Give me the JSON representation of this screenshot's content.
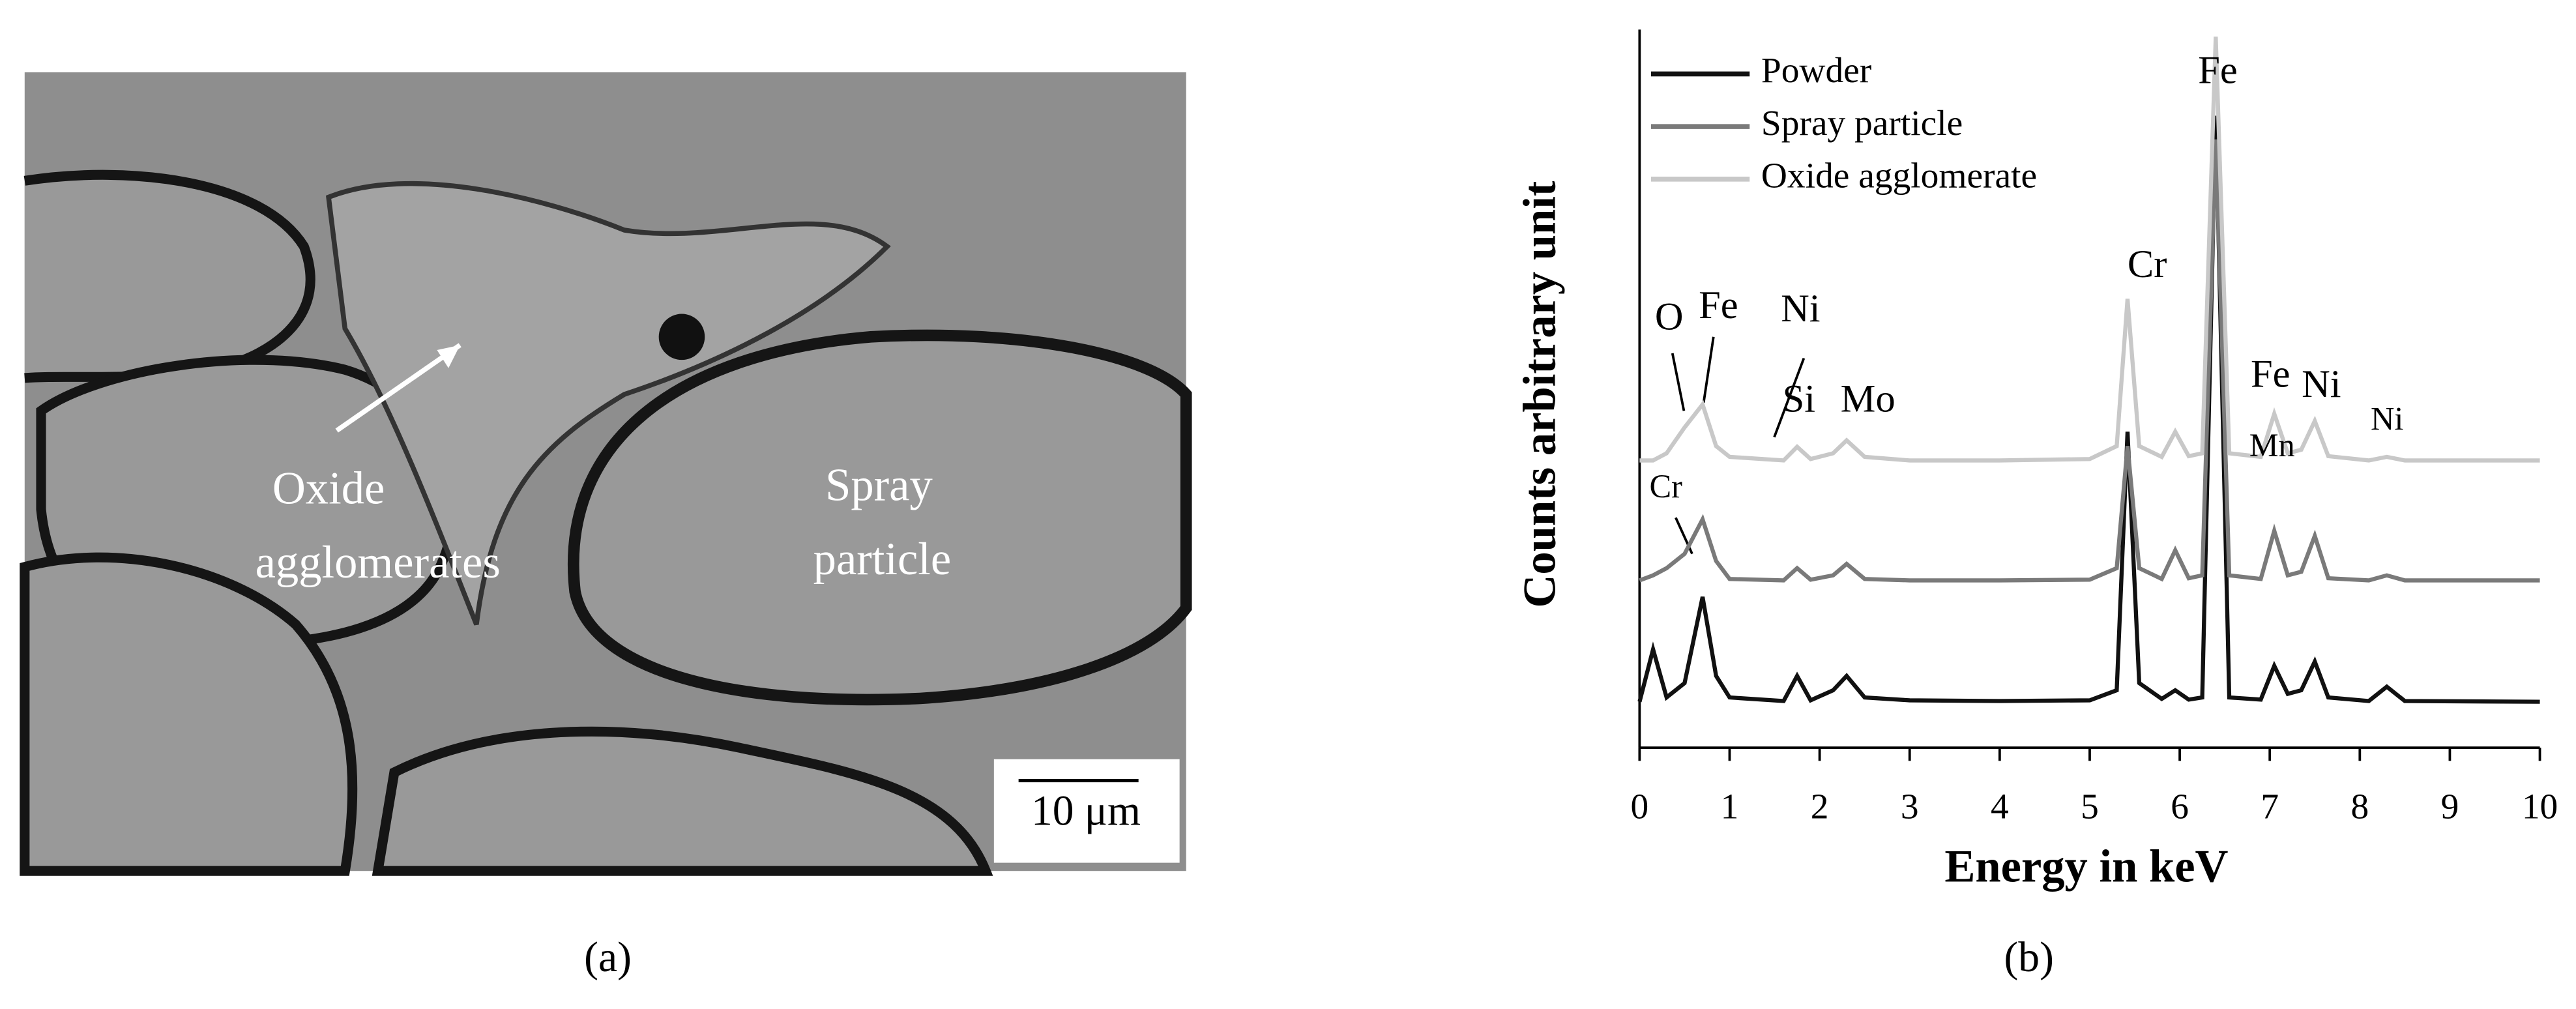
{
  "panel_a": {
    "labels": [
      "Oxide",
      "agglomerates",
      "Spray",
      "particle"
    ],
    "scale_bar": "10 μm",
    "caption": "(a)"
  },
  "panel_b_caption": "(b)",
  "chart_data": {
    "type": "line",
    "x_label": "Energy in keV",
    "y_label": "Counts arbitrary unit",
    "x": [
      0,
      0.15,
      0.3,
      0.5,
      0.7,
      0.85,
      1.0,
      1.6,
      1.75,
      1.9,
      2.15,
      2.3,
      2.5,
      3.0,
      4.0,
      5.0,
      5.3,
      5.42,
      5.55,
      5.8,
      5.95,
      6.1,
      6.25,
      6.4,
      6.55,
      6.9,
      7.05,
      7.2,
      7.35,
      7.5,
      7.65,
      8.1,
      8.3,
      8.5,
      10
    ],
    "series": [
      {
        "name": "Powder",
        "color": "#111111",
        "values": [
          6.4,
          13.7,
          7,
          9,
          21,
          10,
          7,
          6.5,
          10,
          6.6,
          8,
          10,
          7,
          6.6,
          6.5,
          6.6,
          8,
          44,
          9,
          6.8,
          8,
          6.7,
          7,
          88,
          7,
          6.7,
          11.4,
          7.5,
          8,
          12,
          7,
          6.5,
          8.5,
          6.5,
          6.4
        ]
      },
      {
        "name": "Spray particle",
        "color": "#7a7a7a",
        "values": [
          23.3,
          24,
          25,
          27,
          31.8,
          26,
          23.5,
          23.3,
          25,
          23.4,
          24,
          25.6,
          23.5,
          23.3,
          23.3,
          23.4,
          25,
          42,
          25,
          23.5,
          27.5,
          23.6,
          24,
          84.7,
          24,
          23.5,
          30.2,
          24,
          24.5,
          29.5,
          23.6,
          23.3,
          24,
          23.3,
          23.3
        ]
      },
      {
        "name": "Oxide agglomerate",
        "color": "#c8c8c8",
        "values": [
          40,
          40,
          41,
          44.6,
          47.8,
          42,
          40.5,
          40,
          41.9,
          40.2,
          41,
          42.8,
          40.5,
          40,
          40,
          40.2,
          42,
          62.5,
          42,
          40.5,
          44,
          40.6,
          41,
          99,
          41,
          40.5,
          46.5,
          41,
          41.5,
          45.5,
          40.6,
          40,
          40.5,
          40,
          40
        ]
      }
    ],
    "xlim": [
      0,
      10
    ],
    "xticks": [
      0,
      1,
      2,
      3,
      4,
      5,
      6,
      7,
      8,
      9,
      10
    ],
    "ylim": [
      0,
      100
    ],
    "legend": "top-left",
    "annotations": [
      "O",
      "Fe",
      "Ni",
      "Si",
      "Mo",
      "Cr",
      "Mn",
      "Fe",
      "Fe",
      "Ni",
      "Ni",
      "Cr"
    ]
  }
}
